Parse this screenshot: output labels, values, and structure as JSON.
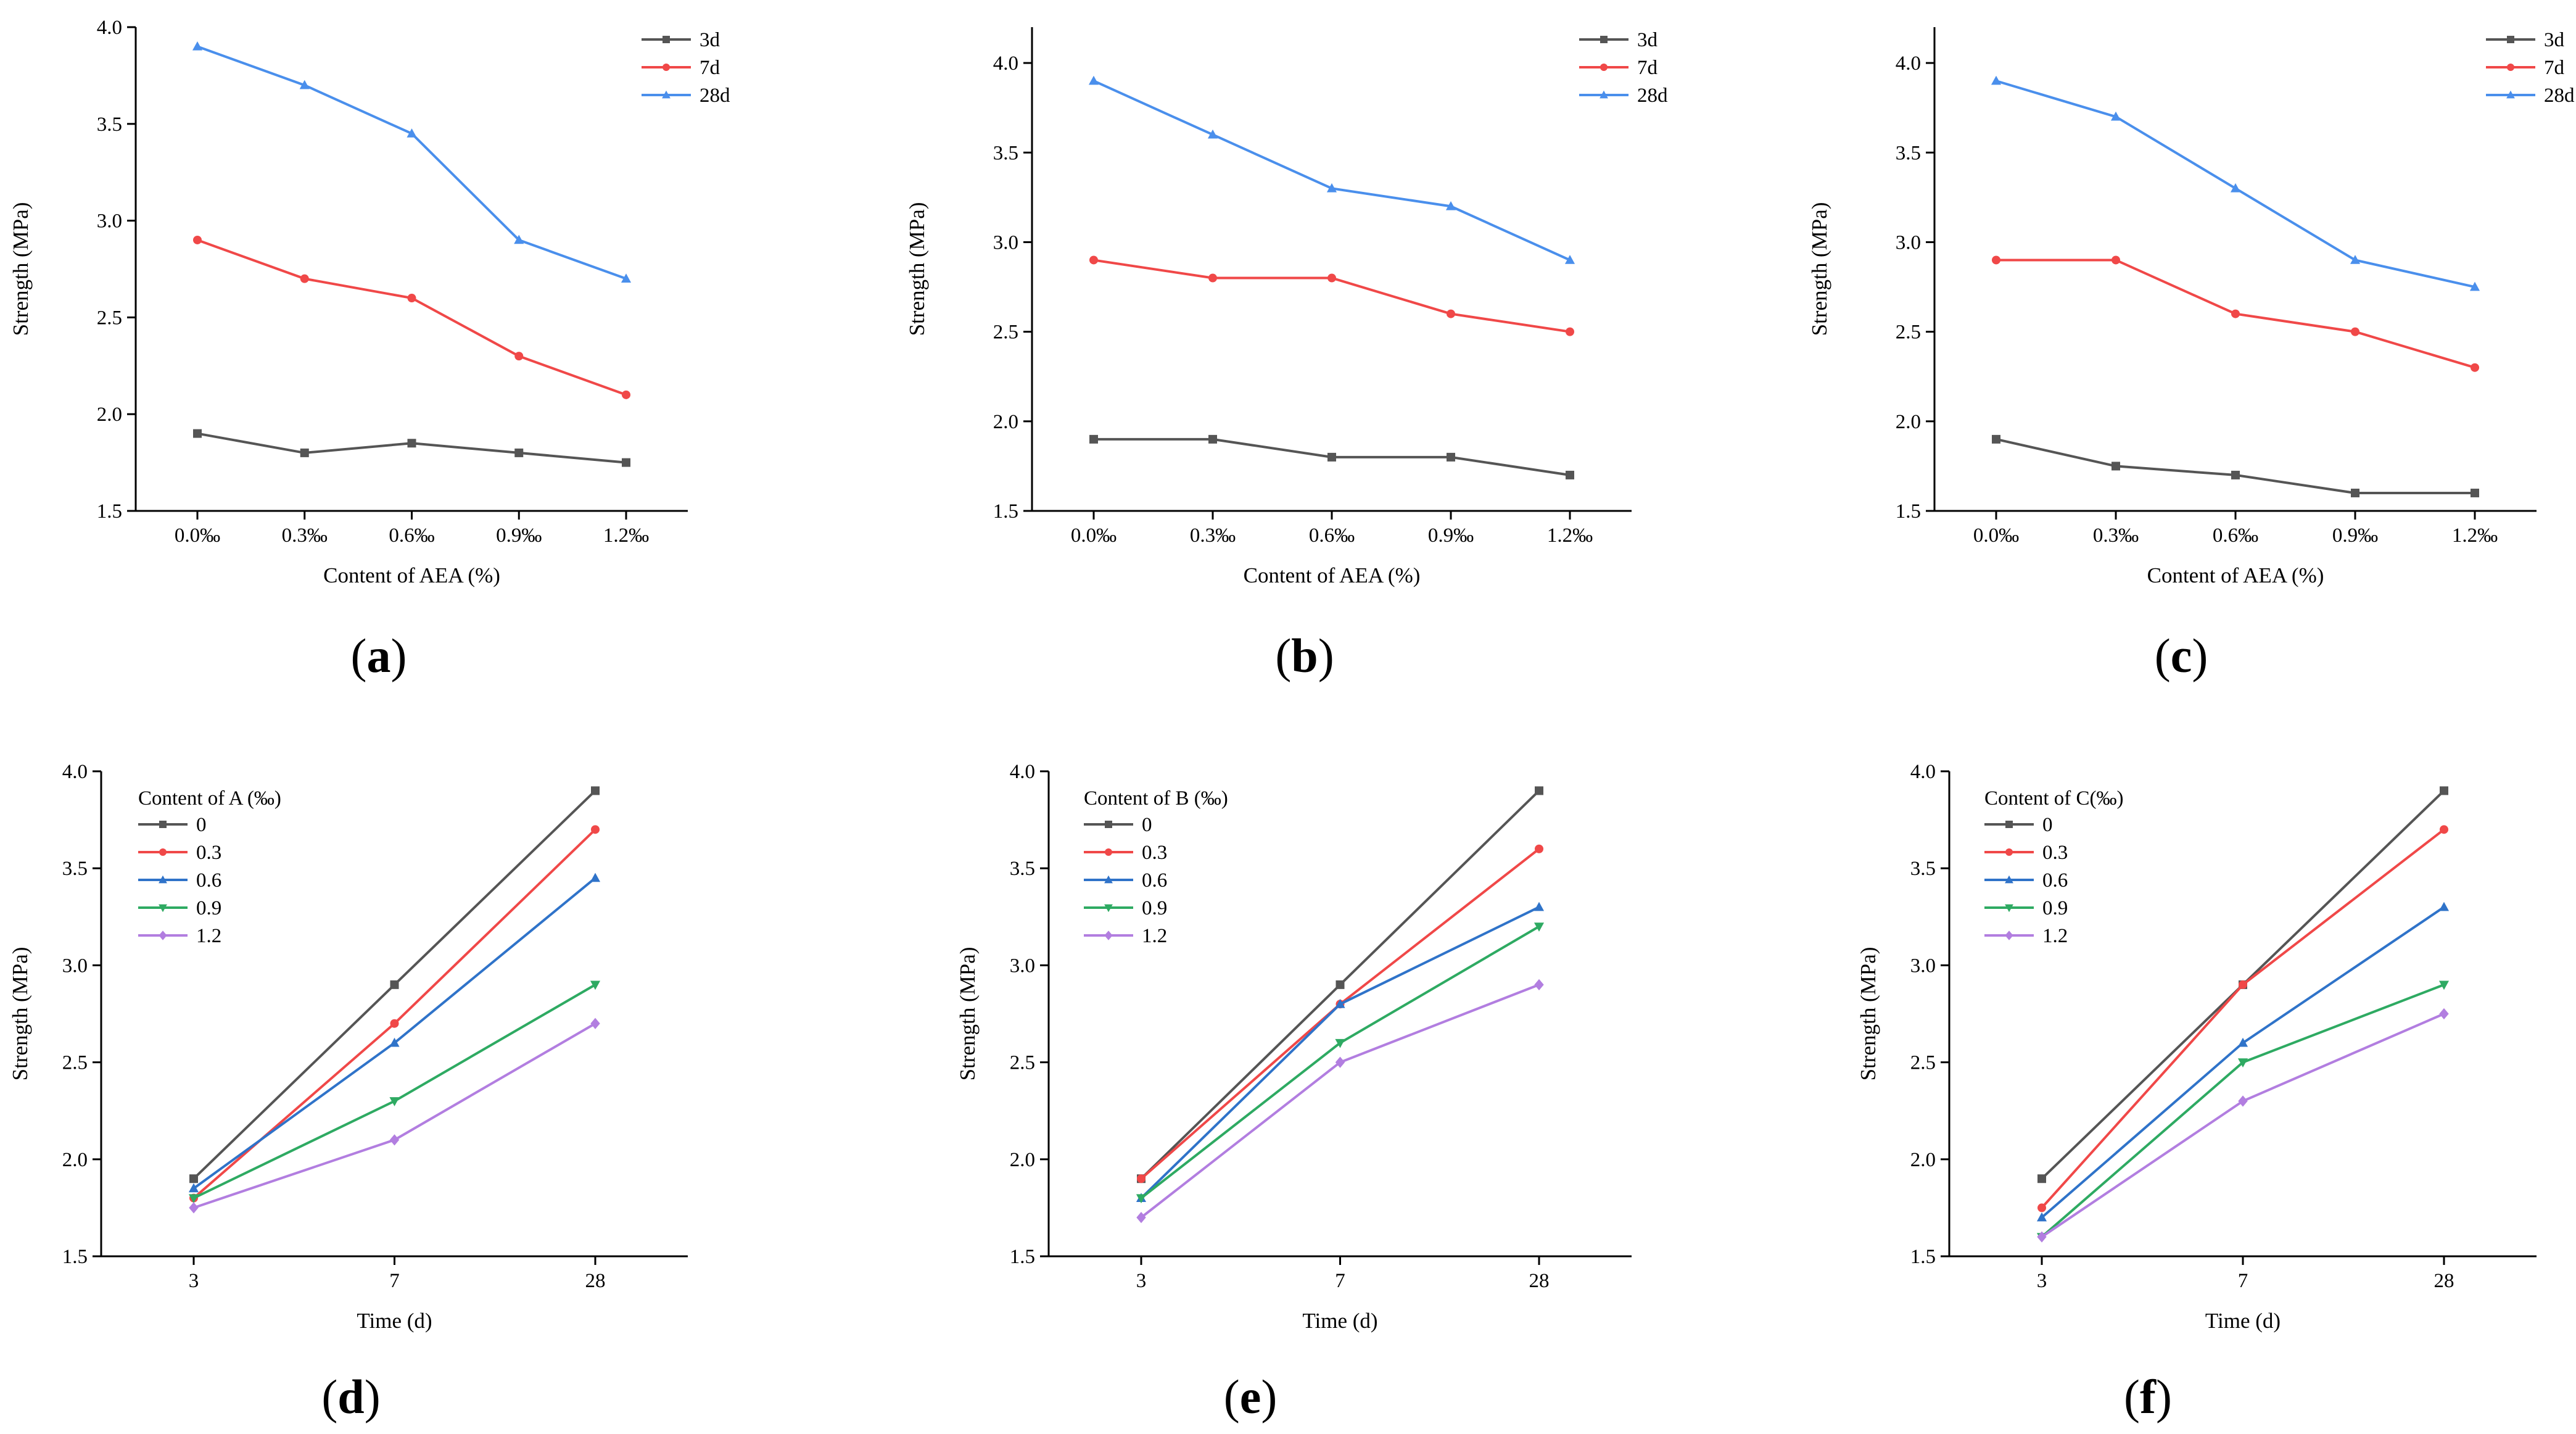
{
  "chart_data": [
    {
      "type": "line",
      "panel_label": "a",
      "xlabel": "Content of AEA (%)",
      "ylabel": "Strength (MPa)",
      "categories": [
        "0.0‰",
        "0.3‰",
        "0.6‰",
        "0.9‰",
        "1.2‰"
      ],
      "ylim": [
        1.5,
        4.0
      ],
      "yticks": [
        "1.5",
        "2.0",
        "2.5",
        "3.0",
        "3.5",
        "4.0"
      ],
      "legend_title": "",
      "legend_position": "top-right",
      "series": [
        {
          "name": "3d",
          "color": "#555555",
          "marker": "square",
          "values": [
            1.9,
            1.8,
            1.85,
            1.8,
            1.75
          ]
        },
        {
          "name": "7d",
          "color": "#f04848",
          "marker": "circle",
          "values": [
            2.9,
            2.7,
            2.6,
            2.3,
            2.1
          ]
        },
        {
          "name": "28d",
          "color": "#4a8fec",
          "marker": "triangle-up",
          "values": [
            3.9,
            3.7,
            3.45,
            2.9,
            2.7
          ]
        }
      ]
    },
    {
      "type": "line",
      "panel_label": "b",
      "xlabel": "Content of AEA (%)",
      "ylabel": "Strength (MPa)",
      "categories": [
        "0.0‰",
        "0.3‰",
        "0.6‰",
        "0.9‰",
        "1.2‰"
      ],
      "ylim": [
        1.5,
        4.2
      ],
      "yticks": [
        "1.5",
        "2.0",
        "2.5",
        "3.0",
        "3.5",
        "4.0"
      ],
      "legend_title": "",
      "legend_position": "top-right",
      "series": [
        {
          "name": "3d",
          "color": "#555555",
          "marker": "square",
          "values": [
            1.9,
            1.9,
            1.8,
            1.8,
            1.7
          ]
        },
        {
          "name": "7d",
          "color": "#f04848",
          "marker": "circle",
          "values": [
            2.9,
            2.8,
            2.8,
            2.6,
            2.5
          ]
        },
        {
          "name": "28d",
          "color": "#4a8fec",
          "marker": "triangle-up",
          "values": [
            3.9,
            3.6,
            3.3,
            3.2,
            2.9
          ]
        }
      ]
    },
    {
      "type": "line",
      "panel_label": "c",
      "xlabel": "Content of AEA (%)",
      "ylabel": "Strength (MPa)",
      "categories": [
        "0.0‰",
        "0.3‰",
        "0.6‰",
        "0.9‰",
        "1.2‰"
      ],
      "ylim": [
        1.5,
        4.2
      ],
      "yticks": [
        "1.5",
        "2.0",
        "2.5",
        "3.0",
        "3.5",
        "4.0"
      ],
      "legend_title": "",
      "legend_position": "top-right",
      "series": [
        {
          "name": "3d",
          "color": "#555555",
          "marker": "square",
          "values": [
            1.9,
            1.75,
            1.7,
            1.6,
            1.6
          ]
        },
        {
          "name": "7d",
          "color": "#f04848",
          "marker": "circle",
          "values": [
            2.9,
            2.9,
            2.6,
            2.5,
            2.3
          ]
        },
        {
          "name": "28d",
          "color": "#4a8fec",
          "marker": "triangle-up",
          "values": [
            3.9,
            3.7,
            3.3,
            2.9,
            2.75
          ]
        }
      ]
    },
    {
      "type": "line",
      "panel_label": "d",
      "xlabel": "Time (d)",
      "ylabel": "Strength (MPa)",
      "categories": [
        "3",
        "7",
        "28"
      ],
      "ylim": [
        1.5,
        4.0
      ],
      "yticks": [
        "1.5",
        "2.0",
        "2.5",
        "3.0",
        "3.5",
        "4.0"
      ],
      "legend_title": "Content of A (‰)",
      "legend_position": "top-left",
      "series": [
        {
          "name": "0",
          "color": "#555555",
          "marker": "square",
          "values": [
            1.9,
            2.9,
            3.9
          ]
        },
        {
          "name": "0.3",
          "color": "#f04848",
          "marker": "circle",
          "values": [
            1.8,
            2.7,
            3.7
          ]
        },
        {
          "name": "0.6",
          "color": "#2f73c9",
          "marker": "triangle-up",
          "values": [
            1.85,
            2.6,
            3.45
          ]
        },
        {
          "name": "0.9",
          "color": "#2eaa62",
          "marker": "triangle-down",
          "values": [
            1.8,
            2.3,
            2.9
          ]
        },
        {
          "name": "1.2",
          "color": "#b27ee0",
          "marker": "diamond",
          "values": [
            1.75,
            2.1,
            2.7
          ]
        }
      ]
    },
    {
      "type": "line",
      "panel_label": "e",
      "xlabel": "Time (d)",
      "ylabel": "Strength (MPa)",
      "categories": [
        "3",
        "7",
        "28"
      ],
      "ylim": [
        1.5,
        4.0
      ],
      "yticks": [
        "1.5",
        "2.0",
        "2.5",
        "3.0",
        "3.5",
        "4.0"
      ],
      "legend_title": "Content of B (‰)",
      "legend_position": "top-left",
      "series": [
        {
          "name": "0",
          "color": "#555555",
          "marker": "square",
          "values": [
            1.9,
            2.9,
            3.9
          ]
        },
        {
          "name": "0.3",
          "color": "#f04848",
          "marker": "circle",
          "values": [
            1.9,
            2.8,
            3.6
          ]
        },
        {
          "name": "0.6",
          "color": "#2f73c9",
          "marker": "triangle-up",
          "values": [
            1.8,
            2.8,
            3.3
          ]
        },
        {
          "name": "0.9",
          "color": "#2eaa62",
          "marker": "triangle-down",
          "values": [
            1.8,
            2.6,
            3.2
          ]
        },
        {
          "name": "1.2",
          "color": "#b27ee0",
          "marker": "diamond",
          "values": [
            1.7,
            2.5,
            2.9
          ]
        }
      ]
    },
    {
      "type": "line",
      "panel_label": "f",
      "xlabel": "Time (d)",
      "ylabel": "Strength (MPa)",
      "categories": [
        "3",
        "7",
        "28"
      ],
      "ylim": [
        1.5,
        4.0
      ],
      "yticks": [
        "1.5",
        "2.0",
        "2.5",
        "3.0",
        "3.5",
        "4.0"
      ],
      "legend_title": "Content of C(‰)",
      "legend_position": "top-left",
      "series": [
        {
          "name": "0",
          "color": "#555555",
          "marker": "square",
          "values": [
            1.9,
            2.9,
            3.9
          ]
        },
        {
          "name": "0.3",
          "color": "#f04848",
          "marker": "circle",
          "values": [
            1.75,
            2.9,
            3.7
          ]
        },
        {
          "name": "0.6",
          "color": "#2f73c9",
          "marker": "triangle-up",
          "values": [
            1.7,
            2.6,
            3.3
          ]
        },
        {
          "name": "0.9",
          "color": "#2eaa62",
          "marker": "triangle-down",
          "values": [
            1.6,
            2.5,
            2.9
          ]
        },
        {
          "name": "1.2",
          "color": "#b27ee0",
          "marker": "diamond",
          "values": [
            1.6,
            2.3,
            2.75
          ]
        }
      ]
    }
  ]
}
